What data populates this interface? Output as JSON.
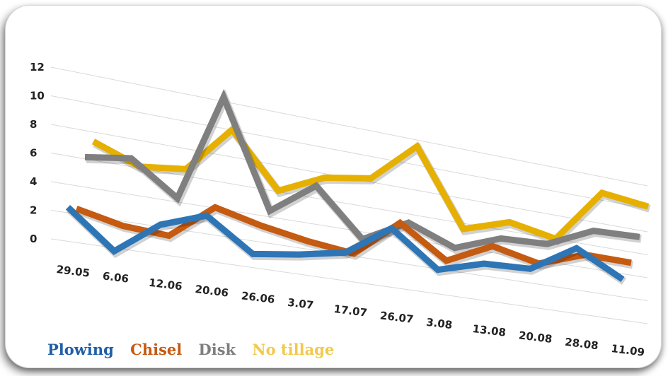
{
  "chart_data": {
    "type": "line",
    "categories": [
      "29.05",
      "6.06",
      "12.06",
      "20.06",
      "26.06",
      "3.07",
      "17.07",
      "26.07",
      "3.08",
      "13.08",
      "20.08",
      "28.08",
      "11.09"
    ],
    "ylim": [
      0,
      12
    ],
    "yticks": [
      "0",
      "2",
      "4",
      "6",
      "8",
      "10",
      "12"
    ],
    "grid": true,
    "legend_position": "bottom-left",
    "series": [
      {
        "name": "Plowing",
        "color": "#2E75B6",
        "values": [
          3.2,
          0.6,
          3.0,
          4.2,
          1.9,
          2.4,
          3.1,
          5.6,
          2.9,
          4.0,
          4.2,
          6.6,
          4.6
        ]
      },
      {
        "name": "Chisel",
        "color": "#C55A11",
        "values": [
          2.9,
          2.2,
          2.0,
          4.6,
          3.8,
          3.2,
          2.8,
          5.8,
          3.4,
          5.2,
          4.4,
          5.8,
          5.8
        ]
      },
      {
        "name": "Disk",
        "color": "#7F7F7F",
        "values": [
          6.3,
          6.8,
          4.5,
          12.5,
          4.7,
          7.2,
          3.7,
          5.6,
          4.2,
          5.6,
          5.8,
          7.6,
          7.8
        ]
      },
      {
        "name": "No tillage",
        "color": "#E6B000",
        "values": [
          7.2,
          6.0,
          6.4,
          9.9,
          6.0,
          7.6,
          8.2,
          11.4,
          5.5,
          6.7,
          6.0,
          10.6,
          10.2
        ]
      }
    ]
  }
}
